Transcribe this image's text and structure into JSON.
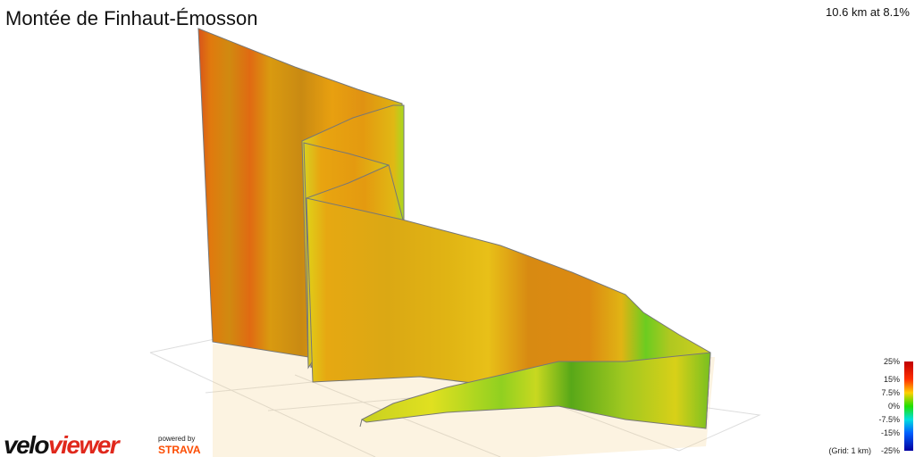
{
  "header": {
    "title": "Montée de Finhaut-Émosson",
    "summary": "10.6 km at 8.1%"
  },
  "legend": {
    "labels": [
      "25%",
      "15%",
      "7.5%",
      "0%",
      "-7.5%",
      "-15%",
      "-25%"
    ],
    "grid_note": "(Grid: 1 km)"
  },
  "branding": {
    "logo_left": "velo",
    "logo_right": "viewer",
    "powered_by": "powered by",
    "partner": "STRAVA"
  }
}
